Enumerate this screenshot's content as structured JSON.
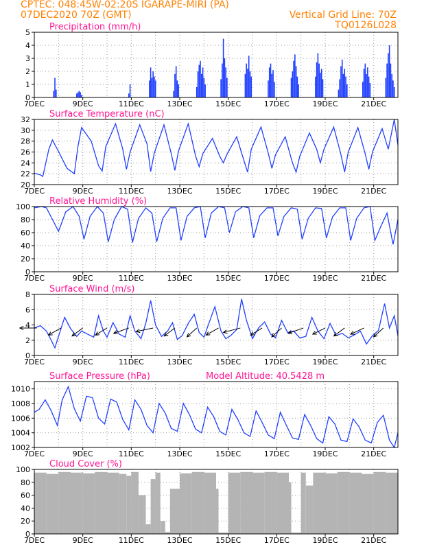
{
  "header": {
    "line1": "CPTEC:   048:45W-02:20S   IGARAPE-MIRI (PA)",
    "line2": "07DEC2020 70Z (GMT)",
    "right1": "Vertical Grid Line: 70Z",
    "right2": "TQ0126L028"
  },
  "colors": {
    "header": "#ff8000",
    "title": "#ff1493",
    "series": "#1f3fff",
    "cloud": "#b4b4b4"
  },
  "time_axis": {
    "x_range_days": [
      0,
      15.0
    ],
    "tick_labels": [
      "7DEC",
      "9DEC",
      "11DEC",
      "13DEC",
      "15DEC",
      "17DEC",
      "19DEC",
      "21DEC"
    ],
    "tick_positions_days": [
      0,
      2,
      4,
      6,
      8,
      10,
      12,
      14
    ],
    "vertical_grid": "dashed, daily"
  },
  "chart_data": [
    {
      "type": "bar",
      "title": "Precipitation (mm/h)",
      "ylim": [
        0,
        5
      ],
      "yticks": [
        "0",
        "1",
        "2",
        "3",
        "4",
        "5"
      ],
      "x_days": [
        0.8,
        0.85,
        0.9,
        1.75,
        1.8,
        1.85,
        1.9,
        1.95,
        3.9,
        3.95,
        4.75,
        4.8,
        4.85,
        4.9,
        4.95,
        5.0,
        5.75,
        5.8,
        5.85,
        5.9,
        5.95,
        6.7,
        6.75,
        6.8,
        6.85,
        6.9,
        6.95,
        7.0,
        7.05,
        7.7,
        7.75,
        7.8,
        7.85,
        7.9,
        7.95,
        8.7,
        8.75,
        8.8,
        8.85,
        8.9,
        8.95,
        9.65,
        9.7,
        9.75,
        9.8,
        9.85,
        9.9,
        10.6,
        10.65,
        10.7,
        10.75,
        10.8,
        10.85,
        10.9,
        11.6,
        11.65,
        11.7,
        11.75,
        11.8,
        11.85,
        11.9,
        12.55,
        12.6,
        12.65,
        12.7,
        12.75,
        12.8,
        12.85,
        12.9,
        13.55,
        13.6,
        13.65,
        13.7,
        13.75,
        13.8,
        13.85,
        14.5,
        14.55,
        14.6,
        14.65,
        14.7,
        14.75,
        14.8,
        14.85
      ],
      "values": [
        0.5,
        1.5,
        0.6,
        0.3,
        0.4,
        0.5,
        0.4,
        0.2,
        0.3,
        1.0,
        1.3,
        2.3,
        1.5,
        2.0,
        1.6,
        1.3,
        0.5,
        1.8,
        2.4,
        1.3,
        1.0,
        0.8,
        2.0,
        2.5,
        2.8,
        1.8,
        2.3,
        1.5,
        1.0,
        1.4,
        2.6,
        4.5,
        3.0,
        2.3,
        1.5,
        1.8,
        2.6,
        2.2,
        3.2,
        2.0,
        1.6,
        1.3,
        2.3,
        2.6,
        1.8,
        2.1,
        1.2,
        1.5,
        2.0,
        2.8,
        3.3,
        2.4,
        1.6,
        1.0,
        1.6,
        2.7,
        3.4,
        2.6,
        1.9,
        2.2,
        1.4,
        0.6,
        1.4,
        2.4,
        2.9,
        1.8,
        2.2,
        1.6,
        1.0,
        1.2,
        2.2,
        2.6,
        1.8,
        2.3,
        1.6,
        1.1,
        1.5,
        2.6,
        3.4,
        4.0,
        2.6,
        1.8,
        1.3,
        0.8
      ]
    },
    {
      "type": "line",
      "title": "Surface Temperature (nC)",
      "ylim": [
        20,
        32
      ],
      "yticks": [
        "20",
        "22",
        "24",
        "26",
        "28",
        "30",
        "32"
      ],
      "x_days": [
        0,
        0.25,
        0.35,
        0.6,
        0.75,
        0.95,
        1.35,
        1.65,
        1.8,
        1.95,
        2.35,
        2.65,
        2.8,
        2.95,
        3.35,
        3.65,
        3.8,
        3.95,
        4.35,
        4.65,
        4.8,
        4.95,
        5.35,
        5.65,
        5.8,
        5.95,
        6.35,
        6.65,
        6.8,
        6.95,
        7.35,
        7.65,
        7.8,
        7.95,
        8.35,
        8.65,
        8.8,
        8.95,
        9.35,
        9.65,
        9.8,
        9.95,
        10.35,
        10.65,
        10.8,
        10.95,
        11.35,
        11.65,
        11.8,
        11.95,
        12.35,
        12.65,
        12.8,
        12.95,
        13.35,
        13.65,
        13.8,
        13.95,
        14.35,
        14.6,
        14.85,
        15.0
      ],
      "values": [
        22.1,
        21.8,
        21.5,
        26.5,
        28.2,
        26.5,
        23,
        22,
        27,
        30.5,
        28,
        23.5,
        22.5,
        27,
        31.2,
        26.5,
        22.8,
        26,
        31,
        27.5,
        22.4,
        25.8,
        31,
        25.7,
        22.6,
        26.2,
        31.2,
        25.3,
        23.3,
        25.7,
        28.5,
        25.2,
        24,
        25.6,
        28.8,
        24.4,
        22.3,
        26.5,
        30.6,
        25.8,
        23,
        25.5,
        28.8,
        24,
        22.3,
        25.2,
        29.5,
        26.5,
        24,
        26.5,
        30.6,
        25.5,
        22.3,
        26,
        30.5,
        25.7,
        22.8,
        26,
        30.3,
        26.5,
        32,
        27.3
      ]
    },
    {
      "type": "line",
      "title": "Relative Humidity (%)",
      "ylim": [
        0,
        100
      ],
      "yticks": [
        "0",
        "20",
        "40",
        "60",
        "80",
        "100"
      ],
      "x_days": [
        0,
        0.3,
        0.5,
        0.75,
        1.0,
        1.3,
        1.6,
        1.85,
        2.05,
        2.3,
        2.6,
        2.85,
        3.05,
        3.3,
        3.6,
        3.85,
        4.05,
        4.3,
        4.6,
        4.85,
        5.05,
        5.3,
        5.6,
        5.85,
        6.05,
        6.3,
        6.6,
        6.85,
        7.05,
        7.3,
        7.6,
        7.85,
        8.05,
        8.3,
        8.6,
        8.85,
        9.05,
        9.3,
        9.6,
        9.85,
        10.05,
        10.3,
        10.6,
        10.85,
        11.05,
        11.3,
        11.6,
        11.85,
        12.05,
        12.3,
        12.6,
        12.85,
        13.05,
        13.3,
        13.6,
        13.85,
        14.05,
        14.3,
        14.55,
        14.8,
        15.0
      ],
      "values": [
        98,
        100,
        98,
        80,
        62,
        92,
        100,
        85,
        50,
        85,
        100,
        90,
        46,
        80,
        100,
        96,
        45,
        82,
        98,
        90,
        46,
        82,
        98,
        98,
        48,
        85,
        98,
        100,
        52,
        90,
        100,
        98,
        60,
        92,
        100,
        98,
        52,
        86,
        98,
        98,
        55,
        85,
        98,
        96,
        50,
        82,
        98,
        97,
        52,
        84,
        98,
        98,
        48,
        82,
        98,
        100,
        48,
        70,
        90,
        42,
        80
      ]
    },
    {
      "type": "line",
      "title": "Surface Wind (m/s)",
      "ylim": [
        0,
        8
      ],
      "yticks": [
        "0",
        "2",
        "4",
        "6",
        "8"
      ],
      "x_days": [
        0,
        0.25,
        0.5,
        0.7,
        0.85,
        1.0,
        1.25,
        1.5,
        1.75,
        1.95,
        2.2,
        2.45,
        2.65,
        2.85,
        3.0,
        3.25,
        3.5,
        3.75,
        3.95,
        4.15,
        4.4,
        4.6,
        4.8,
        5.0,
        5.25,
        5.5,
        5.7,
        5.9,
        6.1,
        6.35,
        6.6,
        6.8,
        7.0,
        7.2,
        7.45,
        7.7,
        7.9,
        8.1,
        8.35,
        8.55,
        8.75,
        9.0,
        9.25,
        9.5,
        9.75,
        9.95,
        10.2,
        10.45,
        10.7,
        10.95,
        11.2,
        11.45,
        11.7,
        11.95,
        12.2,
        12.45,
        12.7,
        12.95,
        13.2,
        13.45,
        13.7,
        13.95,
        14.2,
        14.45,
        14.65,
        14.85,
        15.0
      ],
      "values": [
        3.6,
        3.9,
        3.2,
        2.0,
        1.0,
        2.5,
        5.0,
        3.5,
        2.5,
        3.2,
        2.8,
        2.4,
        5.2,
        3.2,
        2.4,
        4.3,
        2.8,
        2.4,
        5.2,
        3.2,
        2.2,
        4.2,
        7.2,
        4.0,
        2.5,
        3.2,
        4.3,
        2.1,
        2.6,
        4.2,
        5.4,
        3.0,
        2.4,
        4.2,
        6.4,
        3.2,
        2.2,
        2.6,
        3.4,
        7.4,
        4.6,
        2.2,
        3.6,
        4.4,
        2.8,
        2.3,
        4.6,
        3.0,
        3.2,
        2.3,
        2.5,
        5.0,
        3.2,
        2.2,
        4.2,
        2.6,
        2.9,
        2.3,
        2.7,
        3.2,
        1.5,
        2.6,
        3.3,
        6.8,
        3.6,
        5.2,
        2.6
      ],
      "wind_vectors": {
        "x_days": [
          0.1,
          1.1,
          2.0,
          3.0,
          3.9,
          4.9,
          5.8,
          6.7,
          7.6,
          8.5,
          9.4,
          10.2,
          11.1,
          12.0,
          12.8,
          13.6,
          14.4
        ],
        "u": [
          -0.95,
          -0.7,
          -0.6,
          -0.65,
          -0.85,
          -0.95,
          -0.6,
          -0.55,
          -0.7,
          -0.95,
          -0.65,
          -0.55,
          -0.85,
          -0.7,
          -0.6,
          -0.75,
          -0.55
        ],
        "v": [
          0.0,
          -0.4,
          -0.45,
          -0.4,
          -0.3,
          -0.2,
          -0.45,
          -0.5,
          -0.4,
          -0.25,
          -0.4,
          -0.5,
          -0.3,
          -0.35,
          -0.45,
          -0.35,
          -0.5
        ]
      }
    },
    {
      "type": "line",
      "title": "Surface Pressure (hPa)",
      "annotation": "Model Altitude: 40.5428  m",
      "ylim": [
        1002,
        1011
      ],
      "yticks": [
        "1002",
        "1004",
        "1006",
        "1008",
        "1010"
      ],
      "x_days": [
        0,
        0.2,
        0.45,
        0.7,
        0.95,
        1.15,
        1.4,
        1.65,
        1.9,
        2.15,
        2.4,
        2.65,
        2.9,
        3.15,
        3.4,
        3.65,
        3.9,
        4.15,
        4.4,
        4.65,
        4.9,
        5.15,
        5.4,
        5.65,
        5.9,
        6.15,
        6.4,
        6.65,
        6.9,
        7.15,
        7.4,
        7.65,
        7.9,
        8.15,
        8.4,
        8.65,
        8.9,
        9.15,
        9.4,
        9.65,
        9.9,
        10.15,
        10.4,
        10.65,
        10.9,
        11.15,
        11.4,
        11.65,
        11.9,
        12.15,
        12.4,
        12.65,
        12.9,
        13.15,
        13.4,
        13.65,
        13.9,
        14.15,
        14.4,
        14.65,
        14.85,
        15.0
      ],
      "values": [
        1006.8,
        1007.2,
        1008.5,
        1007,
        1005,
        1008.5,
        1010.3,
        1007.3,
        1005.6,
        1009,
        1008.8,
        1006,
        1005.2,
        1008.6,
        1008.2,
        1005.8,
        1004.4,
        1008.5,
        1007.2,
        1005,
        1004,
        1008,
        1006.7,
        1004.6,
        1004.2,
        1008,
        1006.5,
        1004.5,
        1004,
        1007.5,
        1006.2,
        1004.2,
        1003.7,
        1007.2,
        1005.8,
        1004,
        1003.5,
        1007,
        1005.4,
        1003.7,
        1003.2,
        1006.8,
        1005,
        1003.3,
        1003.1,
        1006.5,
        1005,
        1003.2,
        1002.6,
        1006.2,
        1005.2,
        1003,
        1002.8,
        1005.9,
        1004.8,
        1003,
        1002.6,
        1005.4,
        1006.4,
        1003,
        1002,
        1004
      ]
    },
    {
      "type": "bar",
      "title": "Cloud Cover (%)",
      "ylim": [
        0,
        100
      ],
      "yticks": [
        "0",
        "20",
        "40",
        "60",
        "80",
        "100"
      ],
      "x_days": [
        0,
        0.5,
        1.0,
        1.5,
        2.0,
        2.5,
        3.0,
        3.5,
        3.8,
        4.0,
        4.3,
        4.6,
        4.8,
        5.0,
        5.2,
        5.4,
        5.6,
        6.0,
        6.5,
        7.0,
        7.5,
        7.6,
        8.0,
        8.5,
        9.0,
        9.5,
        10.0,
        10.5,
        10.6,
        11.0,
        11.2,
        11.5,
        12.0,
        12.5,
        13.0,
        13.5,
        14.0,
        14.5,
        15.0
      ],
      "values": [
        95,
        93,
        96,
        95,
        94,
        96,
        95,
        93,
        90,
        96,
        60,
        15,
        85,
        95,
        20,
        3,
        70,
        94,
        96,
        95,
        70,
        2,
        95,
        96,
        95,
        96,
        95,
        80,
        2,
        95,
        75,
        95,
        94,
        96,
        95,
        93,
        96,
        95,
        96
      ]
    }
  ]
}
